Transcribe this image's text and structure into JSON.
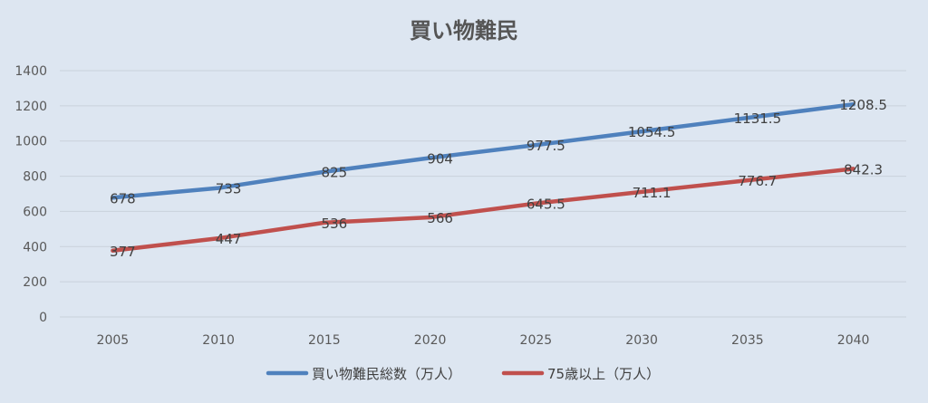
{
  "chart_data": {
    "type": "line",
    "title": "買い物難民",
    "categories": [
      "2005",
      "2010",
      "2015",
      "2020",
      "2025",
      "2030",
      "2035",
      "2040"
    ],
    "series": [
      {
        "name": "買い物難民総数（万人）",
        "color": "#4f81bd",
        "values": [
          678,
          733,
          825,
          904,
          977.5,
          1054.5,
          1131.5,
          1208.5
        ],
        "labels": [
          "678",
          "733",
          "825",
          "904",
          "977.5",
          "1054.5",
          "1131.5",
          "1208.5"
        ]
      },
      {
        "name": "75歳以上（万人）",
        "color": "#c0504d",
        "values": [
          377,
          447,
          536,
          566,
          645.5,
          711.1,
          776.7,
          842.3
        ],
        "labels": [
          "377",
          "447",
          "536",
          "566",
          "645.5",
          "711.1",
          "776.7",
          "842.3"
        ]
      }
    ],
    "yticks": [
      "0",
      "200",
      "400",
      "600",
      "800",
      "1000",
      "1200",
      "1400"
    ],
    "ylim": [
      0,
      1400
    ],
    "grid": true,
    "legend_position": "bottom"
  }
}
